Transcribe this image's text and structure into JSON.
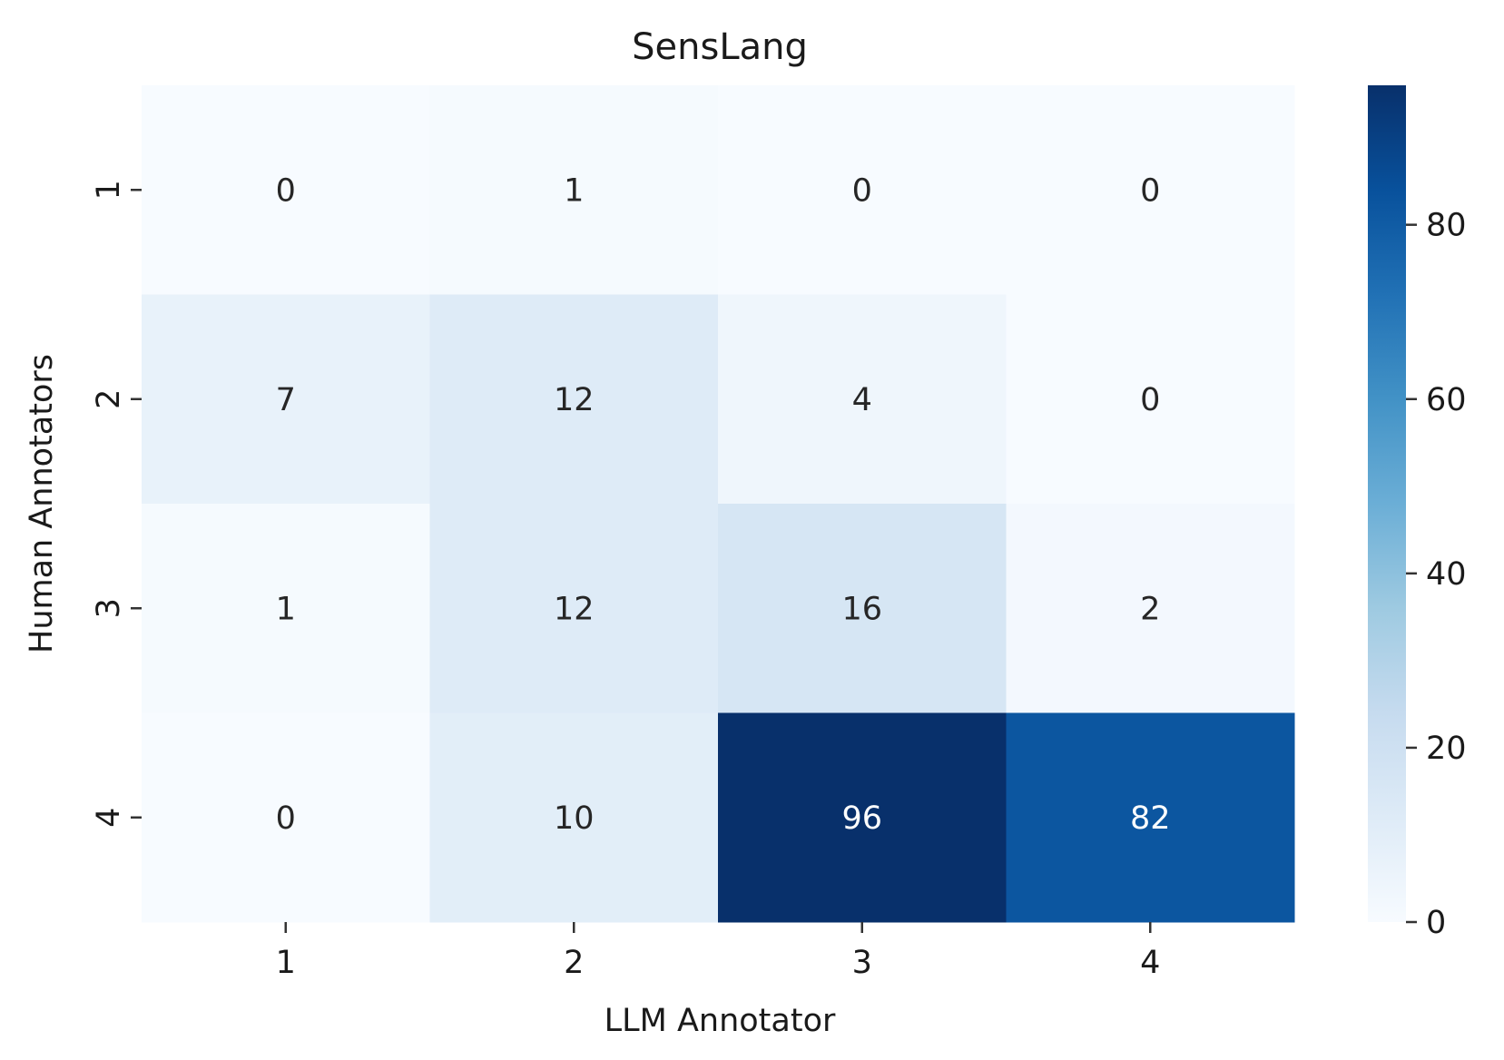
{
  "chart_data": {
    "type": "heatmap",
    "title": "SensLang",
    "xlabel": "LLM Annotator",
    "ylabel": "Human Annotators",
    "x_categories": [
      "1",
      "2",
      "3",
      "4"
    ],
    "y_categories": [
      "1",
      "2",
      "3",
      "4"
    ],
    "values": [
      [
        0,
        1,
        0,
        0
      ],
      [
        7,
        12,
        4,
        0
      ],
      [
        1,
        12,
        16,
        2
      ],
      [
        0,
        10,
        96,
        82
      ]
    ],
    "colormap": "Blues",
    "colorbar": {
      "range": [
        0,
        96
      ],
      "ticks": [
        0,
        20,
        40,
        60,
        80
      ],
      "tick_labels": [
        "0",
        "20",
        "40",
        "60",
        "80"
      ]
    },
    "annotations": true,
    "grid": false
  }
}
